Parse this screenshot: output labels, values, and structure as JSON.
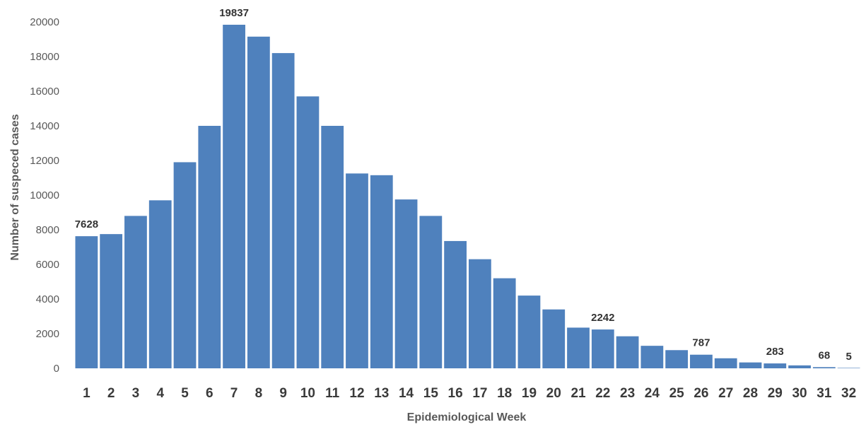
{
  "chart_data": {
    "type": "bar",
    "title": "",
    "xlabel": "Epidemiological Week",
    "ylabel": "Number of suspeced cases",
    "ylim": [
      0,
      20000
    ],
    "yticks": [
      0,
      2000,
      4000,
      6000,
      8000,
      10000,
      12000,
      14000,
      16000,
      18000,
      20000
    ],
    "grid": false,
    "legend": "none",
    "bar_color": "#4f81bd",
    "categories": [
      "1",
      "2",
      "3",
      "4",
      "5",
      "6",
      "7",
      "8",
      "9",
      "10",
      "11",
      "12",
      "13",
      "14",
      "15",
      "16",
      "17",
      "18",
      "19",
      "20",
      "21",
      "22",
      "23",
      "24",
      "25",
      "26",
      "27",
      "28",
      "29",
      "30",
      "31",
      "32"
    ],
    "values": [
      7628,
      7750,
      8800,
      9700,
      11900,
      14000,
      19837,
      19150,
      18200,
      15700,
      14000,
      11250,
      11150,
      9750,
      8800,
      7350,
      6300,
      5200,
      4200,
      3400,
      2350,
      2242,
      1850,
      1300,
      1050,
      787,
      580,
      340,
      283,
      170,
      68,
      5
    ],
    "data_labels": [
      {
        "index": 0,
        "text": "7628"
      },
      {
        "index": 6,
        "text": "19837"
      },
      {
        "index": 21,
        "text": "2242"
      },
      {
        "index": 25,
        "text": "787"
      },
      {
        "index": 28,
        "text": "283"
      },
      {
        "index": 30,
        "text": "68"
      },
      {
        "index": 31,
        "text": "5"
      }
    ]
  }
}
